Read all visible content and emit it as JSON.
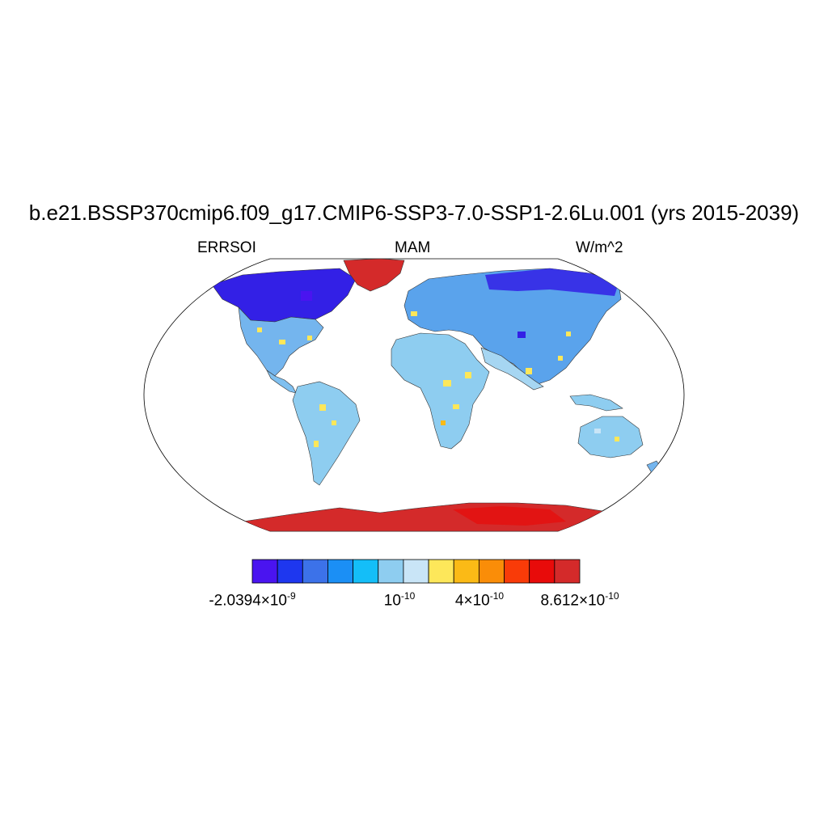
{
  "header": {
    "title": "b.e21.BSSP370cmip6.f09_g17.CMIP6-SSP3-7.0-SSP1-2.6Lu.001 (yrs 2015-2039)",
    "left_label": "ERRSOI",
    "center_label": "MAM",
    "right_label": "W/m^2"
  },
  "colorbar": {
    "colors": [
      "#4a14f0",
      "#1e37ef",
      "#3c72e9",
      "#1b8ff5",
      "#14bef8",
      "#8ecdf0",
      "#c9e5f7",
      "#fde75a",
      "#fbba16",
      "#fa8d08",
      "#f93b08",
      "#e80b0a",
      "#d42a2a"
    ],
    "labels": [
      {
        "mant": "-2.0394×10",
        "exp": "-9"
      },
      {
        "mant": "10",
        "exp": "-10"
      },
      {
        "mant": "4×10",
        "exp": "-10"
      },
      {
        "mant": "8.612×10",
        "exp": "-10"
      }
    ]
  },
  "map": {
    "projection": "robinson",
    "field": "ERRSOI",
    "season": "MAM",
    "units": "W/m^2"
  }
}
